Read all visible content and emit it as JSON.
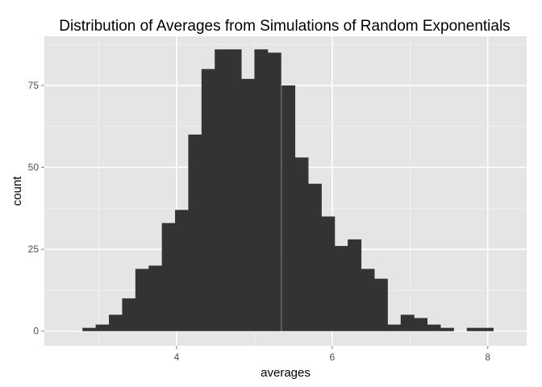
{
  "chart_data": {
    "type": "bar",
    "title": "Distribution of Averages from Simulations of Random Exponentials",
    "xlabel": "averages",
    "ylabel": "count",
    "xlim": [
      2.3,
      8.5
    ],
    "ylim": [
      -4.5,
      90
    ],
    "x_ticks": [
      4,
      6,
      8
    ],
    "y_ticks": [
      0,
      25,
      50,
      75
    ],
    "x_tick_labels": [
      "4",
      "6",
      "8"
    ],
    "y_tick_labels": [
      "0",
      "25",
      "50",
      "75"
    ],
    "bin_width": 0.171,
    "bins": [
      {
        "x0": 2.79,
        "count": 1
      },
      {
        "x0": 2.96,
        "count": 2
      },
      {
        "x0": 3.13,
        "count": 5
      },
      {
        "x0": 3.3,
        "count": 10
      },
      {
        "x0": 3.47,
        "count": 19
      },
      {
        "x0": 3.64,
        "count": 20
      },
      {
        "x0": 3.81,
        "count": 33
      },
      {
        "x0": 3.98,
        "count": 37
      },
      {
        "x0": 4.15,
        "count": 60
      },
      {
        "x0": 4.32,
        "count": 80
      },
      {
        "x0": 4.49,
        "count": 86
      },
      {
        "x0": 4.66,
        "count": 86
      },
      {
        "x0": 4.83,
        "count": 77
      },
      {
        "x0": 5.0,
        "count": 86
      },
      {
        "x0": 5.17,
        "count": 85
      },
      {
        "x0": 5.35,
        "count": 75
      },
      {
        "x0": 5.52,
        "count": 53
      },
      {
        "x0": 5.69,
        "count": 45
      },
      {
        "x0": 5.86,
        "count": 35
      },
      {
        "x0": 6.03,
        "count": 26
      },
      {
        "x0": 6.2,
        "count": 28
      },
      {
        "x0": 6.37,
        "count": 19
      },
      {
        "x0": 6.54,
        "count": 16
      },
      {
        "x0": 6.71,
        "count": 2
      },
      {
        "x0": 6.88,
        "count": 5
      },
      {
        "x0": 7.05,
        "count": 4
      },
      {
        "x0": 7.22,
        "count": 2
      },
      {
        "x0": 7.39,
        "count": 1
      },
      {
        "x0": 7.56,
        "count": 0
      },
      {
        "x0": 7.73,
        "count": 1
      },
      {
        "x0": 7.9,
        "count": 1
      }
    ],
    "grid": true,
    "legend": "none",
    "colors": {
      "panel_background": "#e5e5e5",
      "grid_major": "#ffffff",
      "grid_minor": "#f2f2f2",
      "bar_fill": "#333333",
      "tick_mark": "#7f7f7f"
    }
  }
}
